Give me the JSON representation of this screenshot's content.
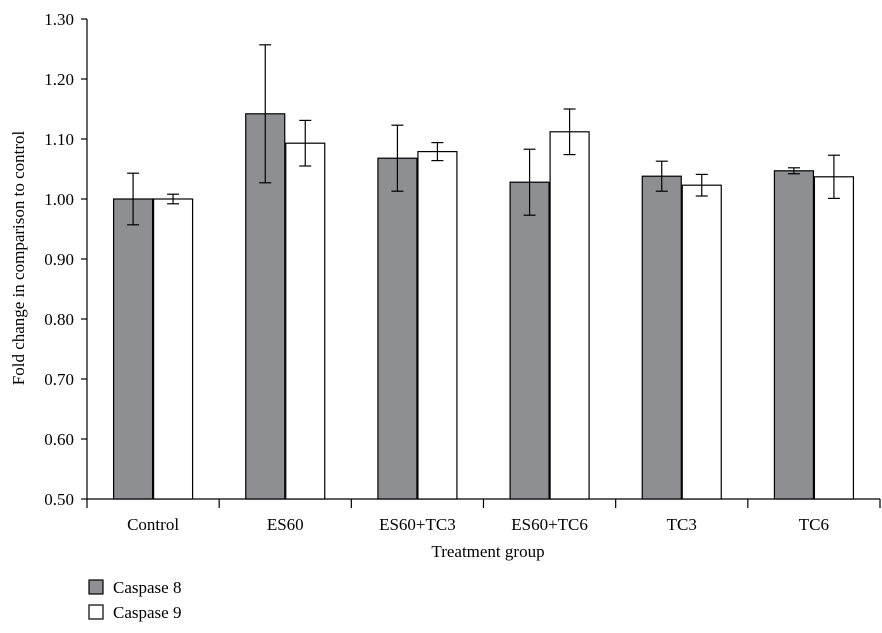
{
  "chart_data": {
    "type": "bar",
    "title": "",
    "xlabel": "Treatment group",
    "ylabel": "Fold change in comparison to control",
    "categories": [
      "Control",
      "ES60",
      "ES60+TC3",
      "ES60+TC6",
      "TC3",
      "TC6"
    ],
    "ylim": [
      0.5,
      1.3
    ],
    "yticks": [
      "0.50",
      "0.60",
      "0.70",
      "0.80",
      "0.90",
      "1.00",
      "1.10",
      "1.20",
      "1.30"
    ],
    "grid": false,
    "legend_position": "bottom-left",
    "series": [
      {
        "name": "Caspase 8",
        "color": "#8e8f93",
        "values": [
          1.0,
          1.142,
          1.068,
          1.028,
          1.038,
          1.047
        ],
        "errors": [
          0.043,
          0.115,
          0.055,
          0.055,
          0.025,
          0.005
        ]
      },
      {
        "name": "Caspase 9",
        "color": "#ffffff",
        "values": [
          1.0,
          1.093,
          1.079,
          1.112,
          1.023,
          1.037
        ],
        "errors": [
          0.008,
          0.038,
          0.015,
          0.038,
          0.018,
          0.036
        ]
      }
    ]
  }
}
